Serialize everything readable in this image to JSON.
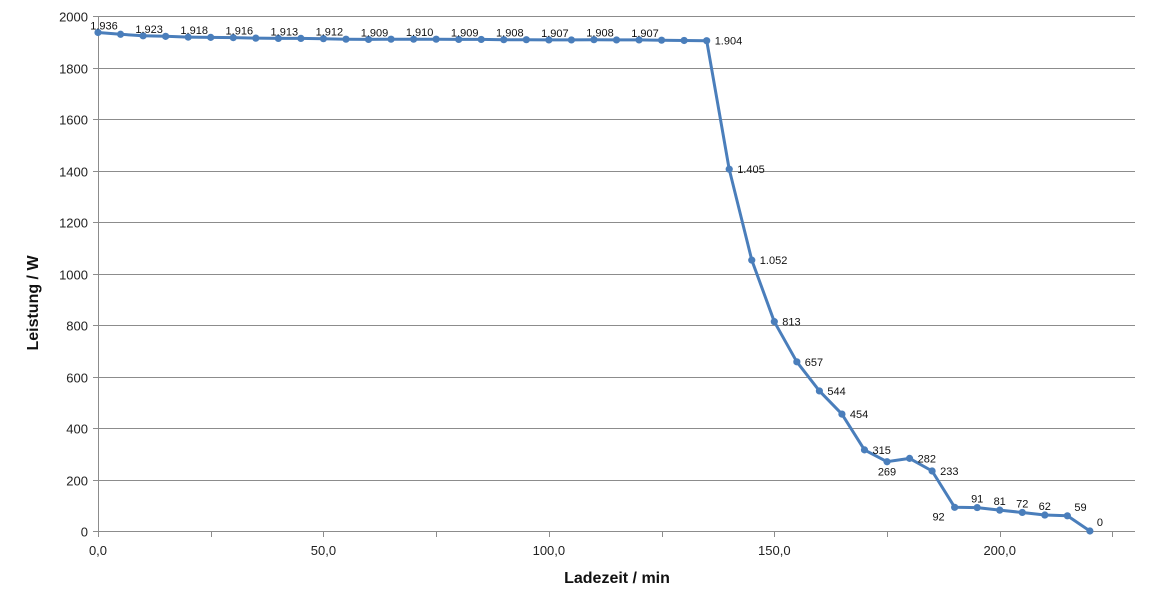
{
  "chart_data": {
    "type": "line",
    "title": "",
    "xlabel": "Ladezeit / min",
    "ylabel": "Leistung / W",
    "xlim": [
      0,
      230
    ],
    "ylim": [
      0,
      2000
    ],
    "x_ticks": [
      0,
      50,
      100,
      150,
      200
    ],
    "x_tick_labels": [
      "0,0",
      "50,0",
      "100,0",
      "150,0",
      "200,0"
    ],
    "y_ticks": [
      0,
      200,
      400,
      600,
      800,
      1000,
      1200,
      1400,
      1600,
      1800,
      2000
    ],
    "y_tick_labels": [
      "0",
      "200",
      "400",
      "600",
      "800",
      "1000",
      "1200",
      "1400",
      "1600",
      "1800",
      "2000"
    ],
    "grid": "horizontal",
    "legend": "none",
    "colors": {
      "series": "#4a7ebb",
      "grid": "#8c8c8c",
      "axis": "#8c8c8c"
    },
    "series": [
      {
        "x": [
          0,
          5,
          10,
          15,
          20,
          25,
          30,
          35,
          40,
          45,
          50,
          55,
          60,
          65,
          70,
          75,
          80,
          85,
          90,
          95,
          100,
          105,
          110,
          115,
          120,
          125,
          130,
          135,
          140,
          145,
          150,
          155,
          160,
          165,
          170,
          175,
          180,
          185,
          190,
          195,
          200,
          205,
          210,
          215,
          220
        ],
        "y": [
          1936,
          1929,
          1923,
          1921,
          1918,
          1917,
          1916,
          1914,
          1913,
          1913,
          1912,
          1910,
          1909,
          1910,
          1910,
          1910,
          1909,
          1909,
          1908,
          1908,
          1907,
          1907,
          1908,
          1907,
          1907,
          1906,
          1905,
          1904,
          1405,
          1052,
          813,
          657,
          544,
          454,
          315,
          269,
          282,
          233,
          92,
          91,
          81,
          72,
          62,
          59,
          0
        ]
      }
    ],
    "data_labels": [
      {
        "x": 0,
        "y": 1936,
        "text": "1.936"
      },
      {
        "x": 10,
        "y": 1923,
        "text": "1.923"
      },
      {
        "x": 20,
        "y": 1918,
        "text": "1.918"
      },
      {
        "x": 30,
        "y": 1916,
        "text": "1.916"
      },
      {
        "x": 40,
        "y": 1913,
        "text": "1.913"
      },
      {
        "x": 50,
        "y": 1912,
        "text": "1.912"
      },
      {
        "x": 60,
        "y": 1909,
        "text": "1.909"
      },
      {
        "x": 70,
        "y": 1910,
        "text": "1.910"
      },
      {
        "x": 80,
        "y": 1909,
        "text": "1.909"
      },
      {
        "x": 90,
        "y": 1908,
        "text": "1.908"
      },
      {
        "x": 100,
        "y": 1907,
        "text": "1.907"
      },
      {
        "x": 110,
        "y": 1908,
        "text": "1.908"
      },
      {
        "x": 120,
        "y": 1907,
        "text": "1.907"
      },
      {
        "x": 135,
        "y": 1904,
        "text": "1.904",
        "pos": "right"
      },
      {
        "x": 140,
        "y": 1405,
        "text": "1.405",
        "pos": "right"
      },
      {
        "x": 145,
        "y": 1052,
        "text": "1.052",
        "pos": "right"
      },
      {
        "x": 150,
        "y": 813,
        "text": "813",
        "pos": "right"
      },
      {
        "x": 155,
        "y": 657,
        "text": "657",
        "pos": "right"
      },
      {
        "x": 160,
        "y": 544,
        "text": "544",
        "pos": "right"
      },
      {
        "x": 165,
        "y": 454,
        "text": "454",
        "pos": "right"
      },
      {
        "x": 170,
        "y": 315,
        "text": "315",
        "pos": "right"
      },
      {
        "x": 175,
        "y": 269,
        "text": "269",
        "pos": "below"
      },
      {
        "x": 180,
        "y": 282,
        "text": "282",
        "pos": "right"
      },
      {
        "x": 185,
        "y": 233,
        "text": "233",
        "pos": "right"
      },
      {
        "x": 190,
        "y": 92,
        "text": "92",
        "pos": "below-left"
      },
      {
        "x": 195,
        "y": 91,
        "text": "91",
        "pos": "above"
      },
      {
        "x": 200,
        "y": 81,
        "text": "81",
        "pos": "above"
      },
      {
        "x": 205,
        "y": 72,
        "text": "72",
        "pos": "above"
      },
      {
        "x": 210,
        "y": 62,
        "text": "62",
        "pos": "above"
      },
      {
        "x": 215,
        "y": 59,
        "text": "59",
        "pos": "above-right"
      },
      {
        "x": 220,
        "y": 0,
        "text": "0",
        "pos": "above-right"
      }
    ]
  }
}
